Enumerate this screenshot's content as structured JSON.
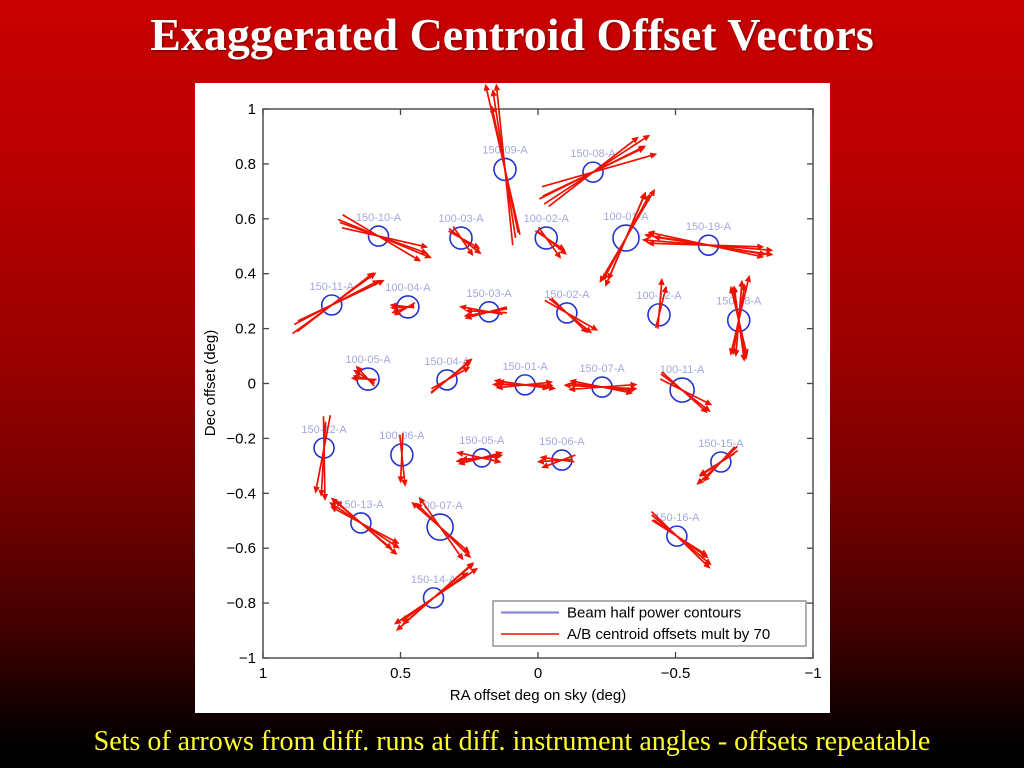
{
  "slide": {
    "title": "Exaggerated Centroid Offset Vectors",
    "caption": "Sets of arrows from diff. runs at diff. instrument angles - offsets repeatable",
    "colors": {
      "background_top": "#c90000",
      "background_bottom": "#000000",
      "title": "#ffffff",
      "caption": "#ffff2e",
      "panel": "#ffffff"
    }
  },
  "chart_data": {
    "type": "scatter",
    "title": "",
    "xlabel": "RA offset deg on sky (deg)",
    "ylabel": "Dec offset (deg)",
    "xlim": [
      1,
      -1
    ],
    "ylim": [
      -1,
      1
    ],
    "x_axis_reversed": true,
    "grid": false,
    "x_tick_values": [
      1,
      0.5,
      0,
      -0.5,
      -1
    ],
    "x_tick_labels": [
      "1",
      "0.5",
      "0",
      "−0.5",
      "−1"
    ],
    "y_tick_values": [
      1,
      0.8,
      0.6,
      0.4,
      0.2,
      0,
      -0.2,
      -0.4,
      -0.6,
      -0.8,
      -1
    ],
    "y_tick_labels": [
      "1",
      "0.8",
      "0.6",
      "0.4",
      "0.2",
      "0",
      "−0.2",
      "−0.4",
      "−0.6",
      "−0.8",
      "−1"
    ],
    "legend_position": "bottom-right-inside",
    "legend": [
      {
        "label": "Beam half power contours",
        "color": "#8888dd"
      },
      {
        "label": "A/B centroid offsets mult by 70",
        "color": "#ee1100"
      }
    ],
    "colors": {
      "circle": "#2233cc",
      "arrow": "#ee1100",
      "point_label": "#a3a8de",
      "axis": "#444444",
      "legend_border": "#999999"
    },
    "points": [
      {
        "label": "150-09-A",
        "x": 0.12,
        "y": 0.78,
        "r": 11,
        "bundles": [
          {
            "a": 100,
            "l1": 70,
            "l2": 73,
            "n": 4,
            "s": 3,
            "h": 1
          }
        ]
      },
      {
        "label": "150-08-A",
        "x": -0.2,
        "y": 0.77,
        "r": 10,
        "bundles": [
          {
            "a": 28,
            "l1": 56,
            "l2": 52,
            "n": 5,
            "s": 9,
            "h": 1
          }
        ]
      },
      {
        "label": "150-10-A",
        "x": 0.58,
        "y": 0.537,
        "r": 10,
        "bundles": [
          {
            "a": -22,
            "l1": 44,
            "l2": 40,
            "n": 4,
            "s": 7,
            "h": 1
          }
        ]
      },
      {
        "label": "100-03-A",
        "x": 0.28,
        "y": 0.53,
        "r": 11,
        "bundles": [
          {
            "a": -42,
            "l1": 17,
            "l2": 13,
            "n": 3,
            "s": 10,
            "h": 1
          }
        ]
      },
      {
        "label": "100-02-A",
        "x": -0.03,
        "y": 0.53,
        "r": 11,
        "bundles": [
          {
            "a": -42,
            "l1": 17,
            "l2": 13,
            "n": 3,
            "s": 10,
            "h": 1
          }
        ]
      },
      {
        "label": "100-01-A",
        "x": -0.32,
        "y": 0.53,
        "r": 13,
        "bundles": [
          {
            "a": 63,
            "l1": 44,
            "l2": 42,
            "n": 4,
            "s": 5,
            "h": 2
          }
        ]
      },
      {
        "label": "150-19-A",
        "x": -0.62,
        "y": 0.504,
        "r": 10,
        "bundles": [
          {
            "a": -7,
            "l1": 56,
            "l2": 54,
            "n": 5,
            "s": 4,
            "h": 2
          }
        ]
      },
      {
        "label": "150-11-A",
        "x": 0.75,
        "y": 0.286,
        "r": 10,
        "bundles": [
          {
            "a": 32,
            "l1": 46,
            "l2": 43,
            "n": 4,
            "s": 6,
            "h": 1
          }
        ]
      },
      {
        "label": "100-04-A",
        "x": 0.473,
        "y": 0.279,
        "r": 11,
        "bundles": [
          {
            "a": 195,
            "l1": 11,
            "l2": 7,
            "n": 4,
            "s": 18,
            "h": 1
          }
        ]
      },
      {
        "label": "150-03-A",
        "x": 0.178,
        "y": 0.261,
        "r": 10,
        "bundles": [
          {
            "a": 185,
            "l1": 20,
            "l2": 16,
            "n": 4,
            "s": 12,
            "h": 1
          }
        ]
      },
      {
        "label": "150-02-A",
        "x": -0.105,
        "y": 0.257,
        "r": 10,
        "bundles": [
          {
            "a": -37,
            "l1": 27,
            "l2": 23,
            "n": 3,
            "s": 6,
            "h": 1
          }
        ]
      },
      {
        "label": "100-12-A",
        "x": -0.44,
        "y": 0.25,
        "r": 11,
        "bundles": [
          {
            "a": 80,
            "l1": 26,
            "l2": 16,
            "n": 2,
            "s": 4,
            "h": 1
          }
        ]
      },
      {
        "label": "150-18-A",
        "x": -0.73,
        "y": 0.23,
        "r": 11,
        "bundles": [
          {
            "a": 82,
            "l1": 34,
            "l2": 34,
            "n": 3,
            "s": 4,
            "h": 2
          },
          {
            "a": 101,
            "l1": 31,
            "l2": 31,
            "n": 3,
            "s": 4,
            "h": 2
          }
        ]
      },
      {
        "label": "100-05-A",
        "x": 0.618,
        "y": 0.016,
        "r": 11,
        "bundles": [
          {
            "a": 160,
            "l1": 10,
            "l2": 8,
            "n": 4,
            "s": 25,
            "h": 1
          }
        ]
      },
      {
        "label": "150-04-A",
        "x": 0.331,
        "y": 0.013,
        "r": 10,
        "bundles": [
          {
            "a": 35,
            "l1": 23,
            "l2": 19,
            "n": 3,
            "s": 8,
            "h": 1
          }
        ]
      },
      {
        "label": "150-01-A",
        "x": 0.047,
        "y": -0.005,
        "r": 10,
        "bundles": [
          {
            "a": 177,
            "l1": 23,
            "l2": 21,
            "n": 4,
            "s": 7,
            "h": 2
          }
        ]
      },
      {
        "label": "150-07-A",
        "x": -0.233,
        "y": -0.013,
        "r": 10,
        "bundles": [
          {
            "a": 176,
            "l1": 28,
            "l2": 25,
            "n": 4,
            "s": 9,
            "h": 2
          }
        ]
      },
      {
        "label": "100-11-A",
        "x": -0.524,
        "y": -0.024,
        "r": 12,
        "bundles": [
          {
            "a": -35,
            "l1": 31,
            "l2": 26,
            "n": 3,
            "s": 6,
            "h": 1
          }
        ]
      },
      {
        "label": "150-12-A",
        "x": 0.778,
        "y": -0.235,
        "r": 10,
        "bundles": [
          {
            "a": -94,
            "l1": 39,
            "l2": 31,
            "n": 3,
            "s": 5,
            "h": 1
          }
        ]
      },
      {
        "label": "100-06-A",
        "x": 0.495,
        "y": -0.26,
        "r": 11,
        "bundles": [
          {
            "a": -88,
            "l1": 23,
            "l2": 19,
            "n": 2,
            "s": 4,
            "h": 1
          }
        ]
      },
      {
        "label": "150-05-A",
        "x": 0.204,
        "y": -0.271,
        "r": 9,
        "bundles": [
          {
            "a": 183,
            "l1": 17,
            "l2": 14,
            "n": 4,
            "s": 16,
            "h": 2
          }
        ]
      },
      {
        "label": "150-06-A",
        "x": -0.087,
        "y": -0.279,
        "r": 10,
        "bundles": [
          {
            "a": 184,
            "l1": 17,
            "l2": 13,
            "n": 3,
            "s": 12,
            "h": 1
          }
        ]
      },
      {
        "label": "150-15-A",
        "x": -0.665,
        "y": -0.286,
        "r": 10,
        "bundles": [
          {
            "a": -142,
            "l1": 23,
            "l2": 19,
            "n": 4,
            "s": 10,
            "h": 1
          }
        ]
      },
      {
        "label": "150-13-A",
        "x": 0.644,
        "y": -0.508,
        "r": 10,
        "bundles": [
          {
            "a": -36,
            "l1": 36,
            "l2": 33,
            "n": 4,
            "s": 7,
            "h": 2
          }
        ]
      },
      {
        "label": "100-07-A",
        "x": 0.356,
        "y": -0.523,
        "r": 13,
        "bundles": [
          {
            "a": -46,
            "l1": 39,
            "l2": 33,
            "n": 3,
            "s": 8,
            "h": 2
          }
        ]
      },
      {
        "label": "150-16-A",
        "x": -0.505,
        "y": -0.556,
        "r": 10,
        "bundles": [
          {
            "a": -36,
            "l1": 36,
            "l2": 31,
            "n": 4,
            "s": 6,
            "h": 1
          }
        ]
      },
      {
        "label": "150-14-A",
        "x": 0.38,
        "y": -0.781,
        "r": 10,
        "bundles": [
          {
            "a": 38,
            "l1": 41,
            "l2": 39,
            "n": 4,
            "s": 6,
            "h": 2
          }
        ]
      }
    ]
  }
}
